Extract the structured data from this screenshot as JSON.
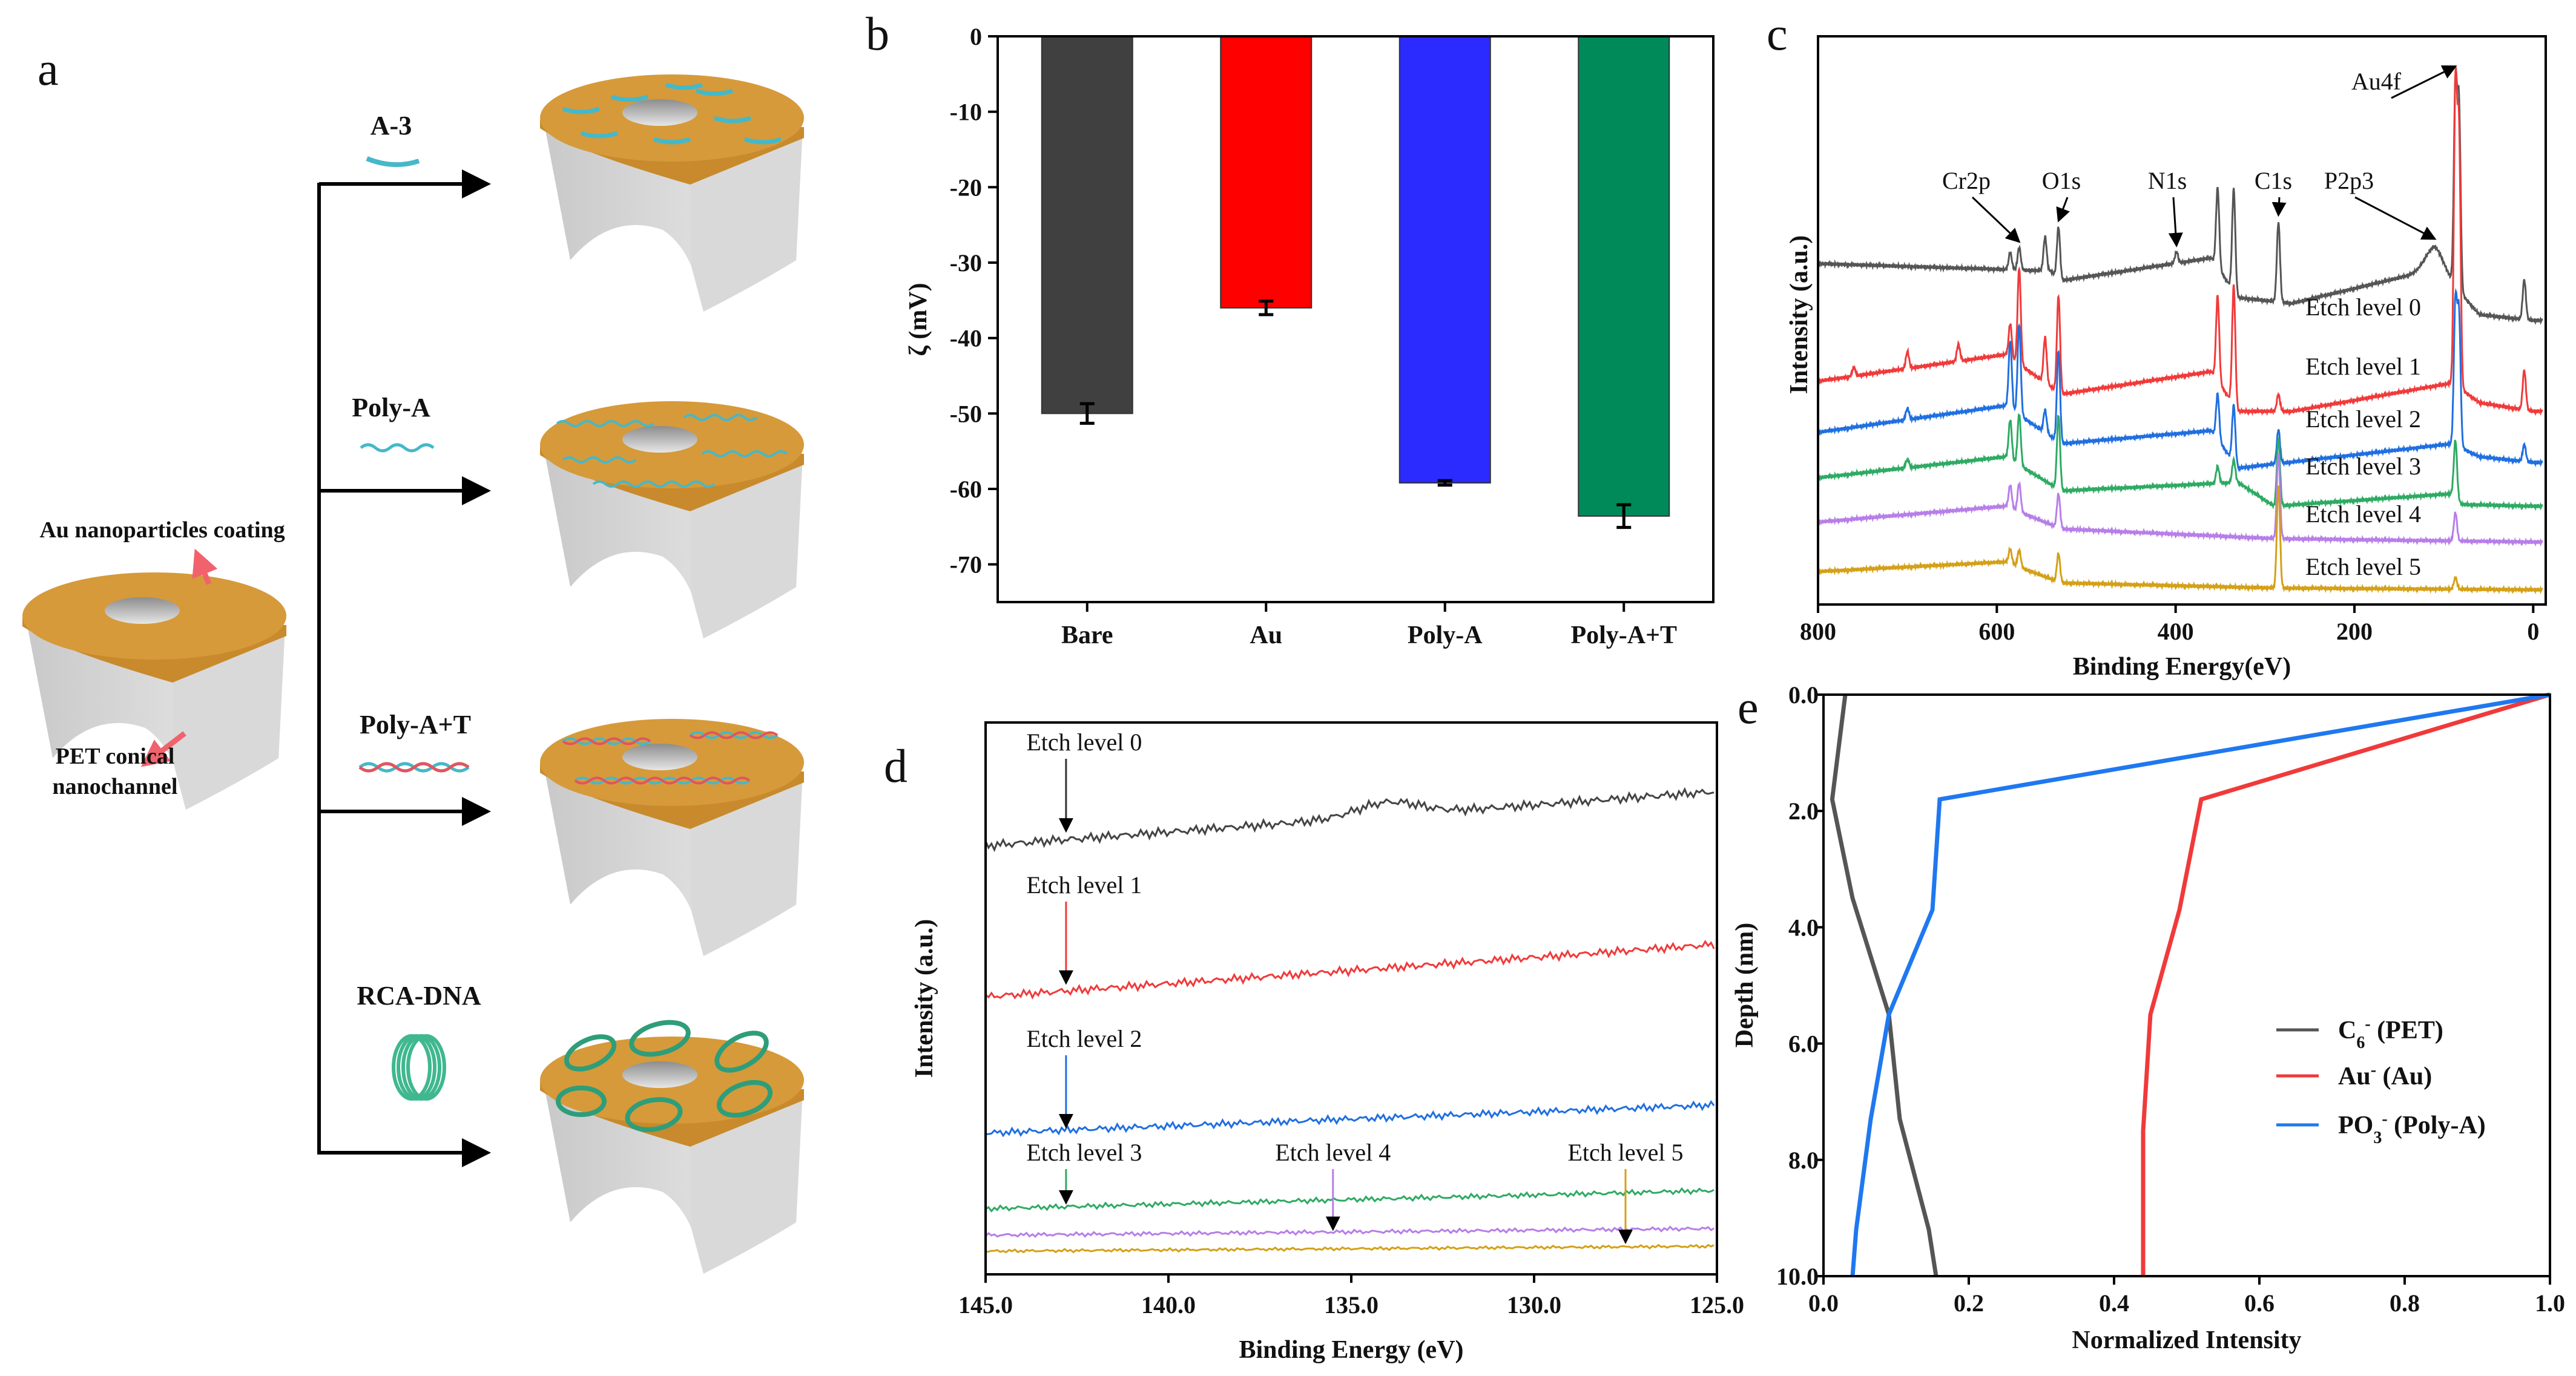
{
  "panel_a": {
    "panel_label": "a",
    "base_label_coating": "Au nanoparticles coating",
    "base_label_channel_line1": "PET conical",
    "base_label_channel_line2": "nanochannel",
    "branches": [
      {
        "label": "A-3"
      },
      {
        "label": "Poly-A"
      },
      {
        "label": "Poly-A+T"
      },
      {
        "label": "RCA-DNA"
      }
    ],
    "colors": {
      "gold": "#d69a3a",
      "pet": "#d2d2d2",
      "dna": "#45b8c9",
      "dna2": "#e0555f",
      "rca": "#3fb88f",
      "arrow": "#f0636d"
    }
  },
  "panel_labels": {
    "b": "b",
    "c": "c",
    "d": "d",
    "e": "e"
  },
  "chart_data": [
    {
      "id": "b",
      "type": "bar",
      "title": "",
      "xlabel": "",
      "ylabel": "ζ (mV)",
      "categories": [
        "Bare",
        "Au",
        "Poly-A",
        "Poly-A+T"
      ],
      "values": [
        -50.0,
        -36.0,
        -59.2,
        -63.6
      ],
      "errors": [
        1.3,
        0.9,
        0.3,
        1.5
      ],
      "colors": [
        "#404040",
        "#ff0000",
        "#2b2bff",
        "#008a5a"
      ],
      "ylim": [
        -75,
        0
      ],
      "yticks": [
        0,
        -10,
        -20,
        -30,
        -40,
        -50,
        -60,
        -70
      ],
      "grid": false
    },
    {
      "id": "c",
      "type": "line",
      "xlabel": "Binding Energy(eV)",
      "ylabel": "Intensity (a.u.)",
      "xlim": [
        800,
        -14
      ],
      "ylim": [
        0,
        10
      ],
      "xticks": [
        800,
        600,
        400,
        200,
        0
      ],
      "grid": false,
      "series": [
        {
          "name": "Etch level 0",
          "color": "#555555",
          "baseline": [
            [
              800,
              6.0
            ],
            [
              540,
              5.87
            ],
            [
              528,
              5.7
            ],
            [
              360,
              6.1
            ],
            [
              330,
              5.4
            ],
            [
              270,
              5.3
            ],
            [
              110,
              5.9
            ],
            [
              85,
              5.55
            ],
            [
              60,
              5.1
            ],
            [
              0,
              5.0
            ],
            [
              -10,
              5.0
            ]
          ],
          "peaks": [
            [
              585,
              0.3
            ],
            [
              575,
              0.4
            ],
            [
              546,
              0.6
            ],
            [
              531,
              0.9
            ],
            [
              399,
              0.2
            ],
            [
              353,
              1.4
            ],
            [
              335,
              1.8
            ],
            [
              285,
              1.4
            ],
            [
              110,
              0.4,
              15
            ],
            [
              87,
              3.5
            ],
            [
              83,
              3.2
            ],
            [
              10,
              0.7
            ]
          ]
        },
        {
          "name": "Etch level 1",
          "color": "#f03a3a",
          "baseline": [
            [
              800,
              3.93
            ],
            [
              590,
              4.4
            ],
            [
              528,
              3.7
            ],
            [
              360,
              4.1
            ],
            [
              330,
              3.4
            ],
            [
              270,
              3.4
            ],
            [
              90,
              3.9
            ],
            [
              60,
              3.55
            ],
            [
              0,
              3.4
            ],
            [
              -10,
              3.4
            ]
          ],
          "peaks": [
            [
              760,
              0.15
            ],
            [
              700,
              0.3
            ],
            [
              643,
              0.3
            ],
            [
              585,
              0.6
            ],
            [
              575,
              1.7
            ],
            [
              546,
              0.8
            ],
            [
              531,
              1.7
            ],
            [
              353,
              1.5
            ],
            [
              335,
              2.1
            ],
            [
              285,
              0.3
            ],
            [
              87,
              5.2
            ],
            [
              83,
              4.4
            ],
            [
              10,
              0.7
            ]
          ]
        },
        {
          "name": "Etch level 2",
          "color": "#1f6fe0",
          "baseline": [
            [
              800,
              3.03
            ],
            [
              590,
              3.5
            ],
            [
              528,
              2.83
            ],
            [
              360,
              3.06
            ],
            [
              330,
              2.4
            ],
            [
              90,
              2.83
            ],
            [
              60,
              2.6
            ],
            [
              0,
              2.5
            ],
            [
              -10,
              2.5
            ]
          ],
          "peaks": [
            [
              700,
              0.2
            ],
            [
              585,
              1.2
            ],
            [
              575,
              1.6
            ],
            [
              546,
              0.4
            ],
            [
              531,
              1.6
            ],
            [
              353,
              0.8
            ],
            [
              335,
              1.0
            ],
            [
              285,
              0.6
            ],
            [
              87,
              2.5
            ],
            [
              83,
              2.3
            ],
            [
              10,
              0.3
            ]
          ]
        },
        {
          "name": "Etch level 3",
          "color": "#2eaa63",
          "baseline": [
            [
              800,
              2.23
            ],
            [
              590,
              2.6
            ],
            [
              528,
              2.0
            ],
            [
              330,
              2.15
            ],
            [
              290,
              1.73
            ],
            [
              90,
              1.95
            ],
            [
              80,
              1.76
            ],
            [
              0,
              1.73
            ],
            [
              -10,
              1.73
            ]
          ],
          "peaks": [
            [
              700,
              0.15
            ],
            [
              585,
              0.7
            ],
            [
              575,
              0.9
            ],
            [
              531,
              1.3
            ],
            [
              353,
              0.3
            ],
            [
              335,
              0.4
            ],
            [
              285,
              1.2
            ],
            [
              87,
              1.0
            ]
          ]
        },
        {
          "name": "Etch level 4",
          "color": "#b77ee8",
          "baseline": [
            [
              800,
              1.45
            ],
            [
              590,
              1.73
            ],
            [
              528,
              1.33
            ],
            [
              290,
              1.16
            ],
            [
              0,
              1.1
            ],
            [
              -10,
              1.1
            ]
          ],
          "peaks": [
            [
              585,
              0.4
            ],
            [
              575,
              0.5
            ],
            [
              531,
              0.6
            ],
            [
              285,
              1.5
            ],
            [
              87,
              0.5
            ]
          ]
        },
        {
          "name": "Etch level 5",
          "color": "#d4a017",
          "baseline": [
            [
              800,
              0.58
            ],
            [
              590,
              0.75
            ],
            [
              528,
              0.38
            ],
            [
              290,
              0.29
            ],
            [
              0,
              0.26
            ],
            [
              -10,
              0.26
            ]
          ],
          "peaks": [
            [
              585,
              0.25
            ],
            [
              575,
              0.3
            ],
            [
              531,
              0.5
            ],
            [
              285,
              1.8
            ],
            [
              87,
              0.2
            ]
          ]
        }
      ],
      "annotations": [
        {
          "label": "Cr2p",
          "energy": 575
        },
        {
          "label": "O1s",
          "energy": 531
        },
        {
          "label": "N1s",
          "energy": 399
        },
        {
          "label": "C1s",
          "energy": 285
        },
        {
          "label": "P2p3",
          "energy": 110
        },
        {
          "label": "Au4f",
          "energy": 87
        }
      ]
    },
    {
      "id": "d",
      "type": "line",
      "xlabel": "Binding Energy (eV)",
      "ylabel": "Intensity (a.u.)",
      "xlim": [
        145,
        125
      ],
      "ylim": [
        0,
        10
      ],
      "xticks": [
        145.0,
        140.0,
        135.0,
        130.0,
        125.0
      ],
      "xticklabels": [
        "145.0",
        "140.0",
        "135.0",
        "130.0",
        "125.0"
      ],
      "grid": false,
      "series": [
        {
          "name": "Etch level 0",
          "color": "#444444",
          "start": 7.77,
          "end": 8.75,
          "noise": 0.09,
          "bump_at": 134,
          "bump": 0.25
        },
        {
          "name": "Etch level 1",
          "color": "#f03a3a",
          "start": 5.03,
          "end": 5.98,
          "noise": 0.08
        },
        {
          "name": "Etch level 2",
          "color": "#1f6fe0",
          "start": 2.56,
          "end": 3.07,
          "noise": 0.07
        },
        {
          "name": "Etch level 3",
          "color": "#2eaa63",
          "start": 1.19,
          "end": 1.52,
          "noise": 0.05
        },
        {
          "name": "Etch level 4",
          "color": "#b77ee8",
          "start": 0.71,
          "end": 0.83,
          "noise": 0.04
        },
        {
          "name": "Etch level 5",
          "color": "#d4a017",
          "start": 0.42,
          "end": 0.51,
          "noise": 0.03
        }
      ],
      "annotations": [
        {
          "label": "Etch level 0",
          "energy": 142.8,
          "series": 0
        },
        {
          "label": "Etch level 1",
          "energy": 142.8,
          "series": 1
        },
        {
          "label": "Etch level 2",
          "energy": 142.8,
          "series": 2
        },
        {
          "label": "Etch level 3",
          "energy": 142.8,
          "series": 3
        },
        {
          "label": "Etch level 4",
          "energy": 135.5,
          "series": 4
        },
        {
          "label": "Etch level 5",
          "energy": 127.5,
          "series": 5
        }
      ]
    },
    {
      "id": "e",
      "type": "line",
      "xlabel": "Normalized Intensity",
      "ylabel": "Depth (nm)",
      "xlim": [
        0,
        1.0
      ],
      "ylim": [
        0,
        10
      ],
      "y_inverted": true,
      "xticks": [
        0.0,
        0.2,
        0.4,
        0.6,
        0.8,
        1.0
      ],
      "xticklabels": [
        "0.0",
        "0.2",
        "0.4",
        "0.6",
        "0.8",
        "1.0"
      ],
      "yticks": [
        0,
        2,
        4,
        6,
        8,
        10
      ],
      "yticklabels": [
        "0.0",
        "2.0",
        "4.0",
        "6.0",
        "8.0",
        "10.0"
      ],
      "legend_position": "center-right",
      "grid": false,
      "series": [
        {
          "name": "C6- (PET)",
          "label_main": "C",
          "label_sub": "6",
          "label_sup": "-",
          "label_rest": " (PET)",
          "color": "#555555",
          "points": [
            [
              0.03,
              0
            ],
            [
              0.012,
              1.8
            ],
            [
              0.04,
              3.5
            ],
            [
              0.09,
              5.5
            ],
            [
              0.105,
              7.3
            ],
            [
              0.145,
              9.2
            ],
            [
              0.155,
              10
            ]
          ]
        },
        {
          "name": "Au- (Au)",
          "label_main": "Au",
          "label_sub": "",
          "label_sup": "-",
          "label_rest": " (Au)",
          "color": "#f03a3a",
          "points": [
            [
              1.0,
              0
            ],
            [
              0.52,
              1.8
            ],
            [
              0.49,
              3.7
            ],
            [
              0.45,
              5.5
            ],
            [
              0.44,
              7.5
            ],
            [
              0.44,
              10
            ]
          ]
        },
        {
          "name": "PO3- (Poly-A)",
          "label_main": "PO",
          "label_sub": "3",
          "label_sup": "-",
          "label_rest": " (Poly-A)",
          "color": "#1f78f0",
          "points": [
            [
              1.0,
              0
            ],
            [
              0.16,
              1.8
            ],
            [
              0.15,
              3.7
            ],
            [
              0.09,
              5.5
            ],
            [
              0.065,
              7.3
            ],
            [
              0.045,
              9.2
            ],
            [
              0.04,
              10
            ]
          ]
        }
      ]
    }
  ]
}
